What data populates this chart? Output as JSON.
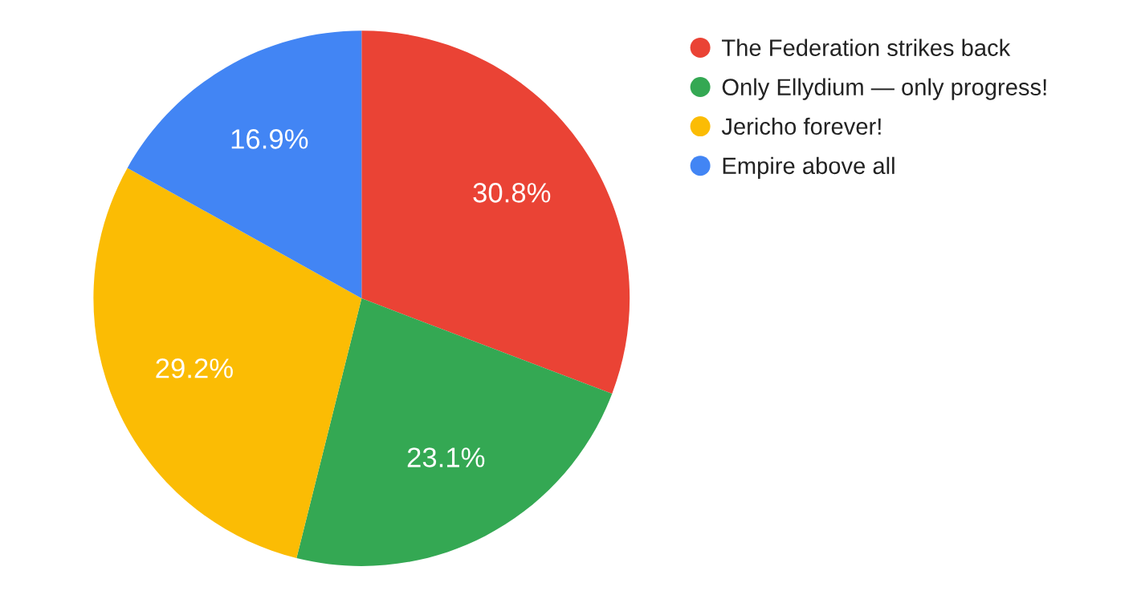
{
  "chart_data": {
    "type": "pie",
    "categories": [
      "The Federation strikes back",
      "Only Ellydium — only progress!",
      "Jericho forever!",
      "Empire above all"
    ],
    "values": [
      30.8,
      23.1,
      29.2,
      16.9
    ],
    "colors": [
      "#ea4335",
      "#34a853",
      "#fbbc04",
      "#4285f4"
    ],
    "value_labels": [
      "30.8%",
      "23.1%",
      "29.2%",
      "16.9%"
    ],
    "legend": "right"
  }
}
